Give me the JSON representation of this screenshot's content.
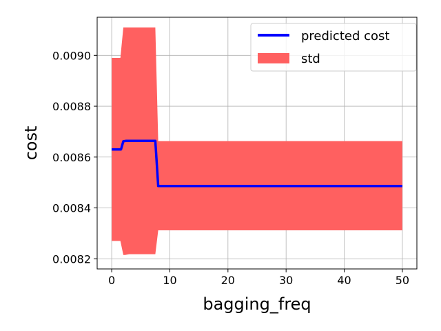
{
  "chart_data": {
    "type": "line",
    "xlabel": "bagging_freq",
    "ylabel": "cost",
    "xlim": [
      -2.5,
      52.5
    ],
    "ylim": [
      0.00816,
      0.00915
    ],
    "x_ticks": [
      0,
      10,
      20,
      30,
      40,
      50
    ],
    "x_tick_labels": [
      "0",
      "10",
      "20",
      "30",
      "40",
      "50"
    ],
    "y_ticks": [
      0.0082,
      0.0084,
      0.0086,
      0.0088,
      0.009
    ],
    "y_tick_labels": [
      "0.0082",
      "0.0084",
      "0.0086",
      "0.0088",
      "0.0090"
    ],
    "grid": true,
    "legend_position": "top-right",
    "series": [
      {
        "name": "predicted cost",
        "kind": "line",
        "color": "#0000ff",
        "x": [
          0,
          1,
          1.6,
          2,
          2.5,
          3,
          7.5,
          8,
          50
        ],
        "y": [
          0.00863,
          0.00863,
          0.00863,
          0.008662,
          0.008664,
          0.008664,
          0.008664,
          0.008486,
          0.008486
        ]
      },
      {
        "name": "std",
        "kind": "band",
        "color": "#ff6060",
        "x": [
          0,
          1.5,
          2,
          2.3,
          3,
          7.5,
          8,
          50
        ],
        "upper": [
          0.00899,
          0.00899,
          0.00911,
          0.00911,
          0.00911,
          0.00911,
          0.008663,
          0.008663
        ],
        "lower": [
          0.00827,
          0.00827,
          0.008215,
          0.008215,
          0.008218,
          0.008218,
          0.008312,
          0.008312
        ]
      }
    ]
  }
}
